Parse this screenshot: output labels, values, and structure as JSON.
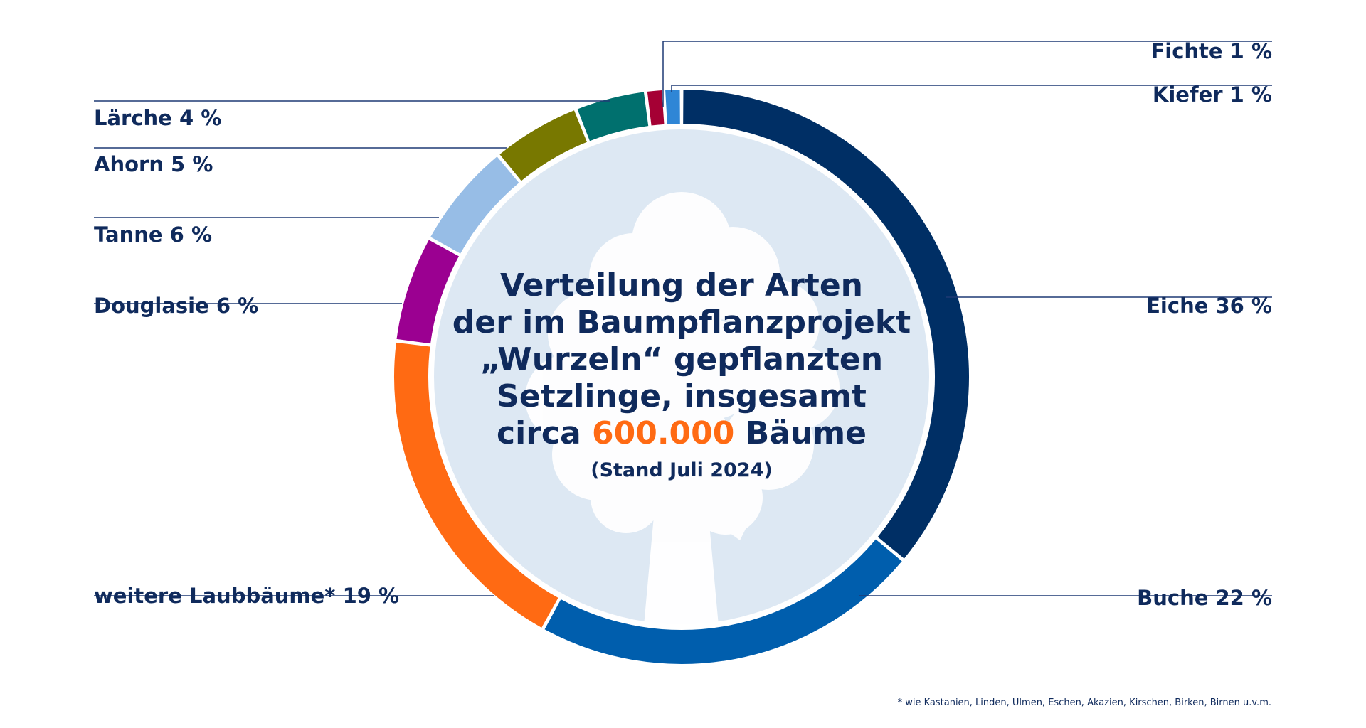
{
  "colors": {
    "text": "#0f2a5c",
    "highlight": "#ff6a13",
    "leader": "#1f3a75",
    "center_fill": "#dde8f3",
    "tree": "#ffffff"
  },
  "chart_data": {
    "type": "pie",
    "variant": "donut",
    "title_lines": [
      "Verteilung der Arten",
      "der im Baumpflanzprojekt",
      "„Wurzeln“ gepflanzten",
      "Setzlinge, insgesamt"
    ],
    "title_last_prefix": "circa ",
    "title_highlight": "600.000",
    "title_last_suffix": " Bäume",
    "subtitle": "(Stand Juli 2024)",
    "slices": [
      {
        "label": "Eiche 36 %",
        "name": "Eiche",
        "value": 36,
        "color": "#002f65",
        "side": "right"
      },
      {
        "label": "Buche 22 %",
        "name": "Buche",
        "value": 22,
        "color": "#005ead",
        "side": "right"
      },
      {
        "label": "weitere Laubbäume* 19 %",
        "name": "weitere Laubbäume",
        "value": 19,
        "color": "#ff6a13",
        "side": "left"
      },
      {
        "label": "Douglasie 6 %",
        "name": "Douglasie",
        "value": 6,
        "color": "#9b0091",
        "side": "left"
      },
      {
        "label": "Tanne 6 %",
        "name": "Tanne",
        "value": 6,
        "color": "#97bde6",
        "side": "left"
      },
      {
        "label": "Ahorn 5 %",
        "name": "Ahorn",
        "value": 5,
        "color": "#787800",
        "side": "left"
      },
      {
        "label": "Lärche 4 %",
        "name": "Lärche",
        "value": 4,
        "color": "#00706e",
        "side": "left"
      },
      {
        "label": "Fichte 1 %",
        "name": "Fichte",
        "value": 1,
        "color": "#a50034",
        "side": "right"
      },
      {
        "label": "Kiefer 1 %",
        "name": "Kiefer",
        "value": 1,
        "color": "#2f86d6",
        "side": "right"
      }
    ]
  },
  "footnote": "* wie Kastanien, Linden, Ulmen, Eschen, Akazien, Kirschen, Birken, Birnen u.v.m."
}
